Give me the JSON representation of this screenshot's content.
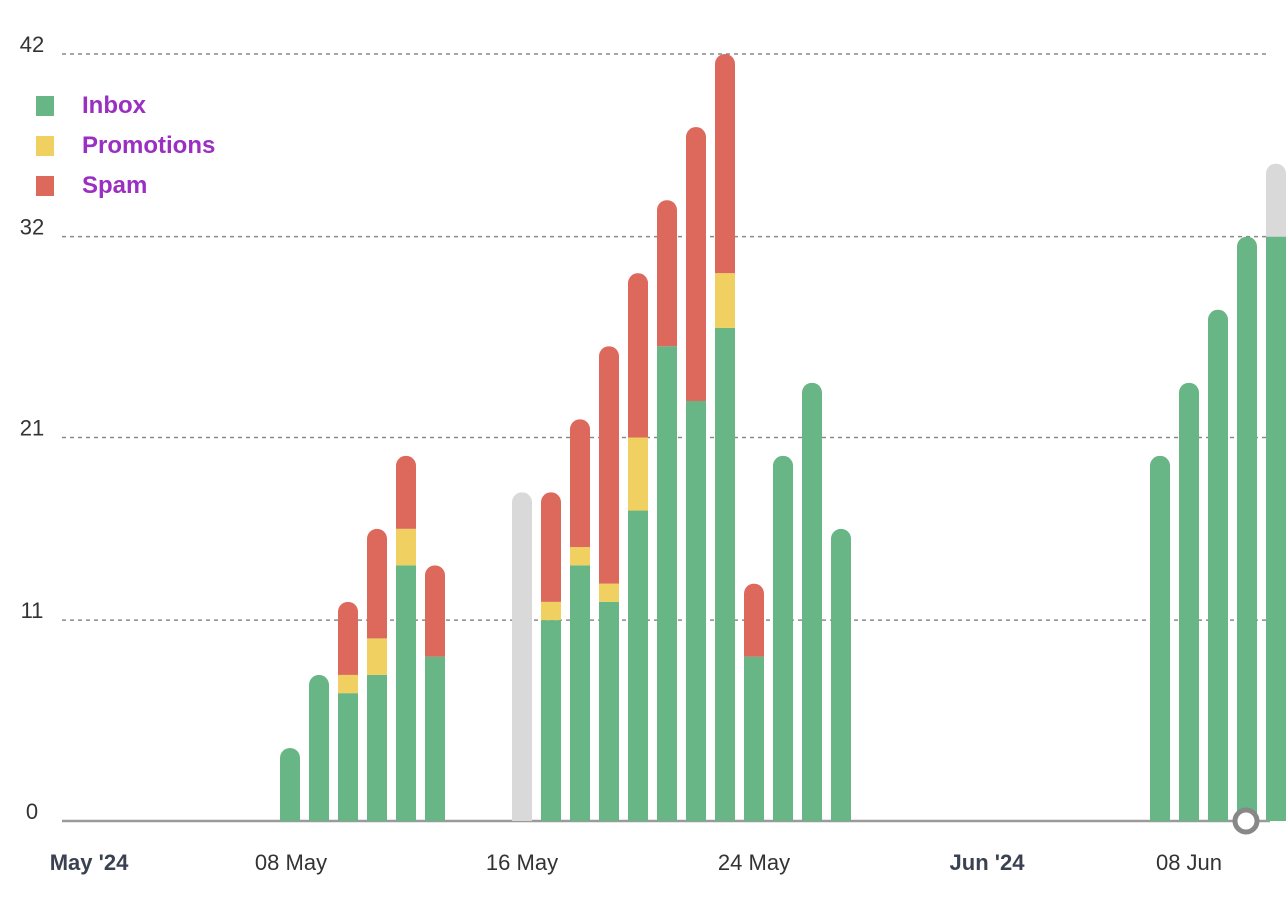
{
  "chart_data": {
    "type": "bar",
    "stacked": true,
    "ylim": [
      0,
      42
    ],
    "yticks": [
      0,
      11,
      21,
      32,
      42
    ],
    "grid": true,
    "legend_position": "top-left",
    "xticks": [
      {
        "label": "May '24",
        "major": true,
        "day": 0
      },
      {
        "label": "08 May",
        "major": false,
        "day": 7
      },
      {
        "label": "16 May",
        "major": false,
        "day": 15
      },
      {
        "label": "24 May",
        "major": false,
        "day": 23
      },
      {
        "label": "Jun '24",
        "major": true,
        "day": 31
      },
      {
        "label": "08 Jun",
        "major": false,
        "day": 38
      }
    ],
    "series": [
      {
        "name": "Inbox",
        "color": "#68b585"
      },
      {
        "name": "Promotions",
        "color": "#f0d060"
      },
      {
        "name": "Spam",
        "color": "#dd685c"
      }
    ],
    "pending_color": "#d9d9d9",
    "days": [
      {
        "day": 8,
        "inbox": 4,
        "promotions": 0,
        "spam": 0
      },
      {
        "day": 9,
        "inbox": 8,
        "promotions": 0,
        "spam": 0
      },
      {
        "day": 10,
        "inbox": 7,
        "promotions": 1,
        "spam": 4
      },
      {
        "day": 11,
        "inbox": 8,
        "promotions": 2,
        "spam": 6
      },
      {
        "day": 12,
        "inbox": 14,
        "promotions": 2,
        "spam": 4
      },
      {
        "day": 13,
        "inbox": 9,
        "promotions": 0,
        "spam": 5
      },
      {
        "day": 16,
        "inbox": 0,
        "promotions": 0,
        "spam": 0,
        "pending": 18
      },
      {
        "day": 17,
        "inbox": 11,
        "promotions": 1,
        "spam": 6
      },
      {
        "day": 18,
        "inbox": 14,
        "promotions": 1,
        "spam": 7
      },
      {
        "day": 19,
        "inbox": 12,
        "promotions": 1,
        "spam": 13
      },
      {
        "day": 20,
        "inbox": 17,
        "promotions": 4,
        "spam": 9
      },
      {
        "day": 21,
        "inbox": 26,
        "promotions": 0,
        "spam": 8
      },
      {
        "day": 22,
        "inbox": 23,
        "promotions": 0,
        "spam": 15
      },
      {
        "day": 23,
        "inbox": 27,
        "promotions": 3,
        "spam": 12
      },
      {
        "day": 24,
        "inbox": 9,
        "promotions": 0,
        "spam": 4
      },
      {
        "day": 25,
        "inbox": 20,
        "promotions": 0,
        "spam": 0
      },
      {
        "day": 26,
        "inbox": 24,
        "promotions": 0,
        "spam": 0
      },
      {
        "day": 27,
        "inbox": 16,
        "promotions": 0,
        "spam": 0
      },
      {
        "day": 38,
        "inbox": 20,
        "promotions": 0,
        "spam": 0
      },
      {
        "day": 39,
        "inbox": 24,
        "promotions": 0,
        "spam": 0
      },
      {
        "day": 40,
        "inbox": 28,
        "promotions": 0,
        "spam": 0
      },
      {
        "day": 41,
        "inbox": 32,
        "promotions": 0,
        "spam": 0
      },
      {
        "day": 42,
        "inbox": 32,
        "promotions": 0,
        "spam": 0,
        "pending": 4
      }
    ]
  }
}
